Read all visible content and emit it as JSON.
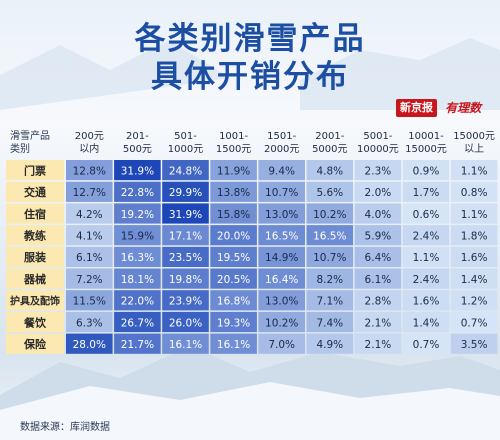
{
  "title": {
    "line1": "各类别滑雪产品",
    "line2": "具体开销分布"
  },
  "brand": {
    "outlet": "新京报",
    "column": "有理数"
  },
  "source": "数据来源：库润数据",
  "chart_data": {
    "type": "heatmap",
    "title": "各类别滑雪产品具体开销分布",
    "corner_header": "滑雪产品类别",
    "columns": [
      "200元以内",
      "201-500元",
      "501-1000元",
      "1001-1500元",
      "1501-2000元",
      "2001-5000元",
      "5001-10000元",
      "10001-15000元",
      "15000元以上"
    ],
    "rows": [
      {
        "name": "门票",
        "values": [
          12.8,
          31.9,
          24.8,
          11.9,
          9.4,
          4.8,
          2.3,
          0.9,
          1.1
        ]
      },
      {
        "name": "交通",
        "values": [
          12.7,
          22.8,
          29.9,
          13.8,
          10.7,
          5.6,
          2.0,
          1.7,
          0.8
        ]
      },
      {
        "name": "住宿",
        "values": [
          4.2,
          19.2,
          31.9,
          15.8,
          13.0,
          10.2,
          4.0,
          0.6,
          1.1
        ]
      },
      {
        "name": "教练",
        "values": [
          4.1,
          15.9,
          17.1,
          20.0,
          16.5,
          16.5,
          5.9,
          2.4,
          1.8
        ]
      },
      {
        "name": "服装",
        "values": [
          6.1,
          16.3,
          23.5,
          19.5,
          14.9,
          10.7,
          6.4,
          1.1,
          1.6
        ]
      },
      {
        "name": "器械",
        "values": [
          7.2,
          18.1,
          19.8,
          20.5,
          16.4,
          8.2,
          6.1,
          2.4,
          1.4
        ]
      },
      {
        "name": "护具及配饰",
        "values": [
          11.5,
          22.0,
          23.9,
          16.8,
          13.0,
          7.1,
          2.8,
          1.6,
          1.2
        ]
      },
      {
        "name": "餐饮",
        "values": [
          6.3,
          26.7,
          26.0,
          19.3,
          10.2,
          7.4,
          2.1,
          1.4,
          0.7
        ]
      },
      {
        "name": "保险",
        "values": [
          28.0,
          21.7,
          16.1,
          16.1,
          7.0,
          4.9,
          2.1,
          0.7,
          3.5
        ]
      }
    ],
    "value_unit": "%",
    "color_low": "#d6e5f6",
    "color_high": "#1d47b8",
    "row_label_bg": "#fce9b2"
  }
}
